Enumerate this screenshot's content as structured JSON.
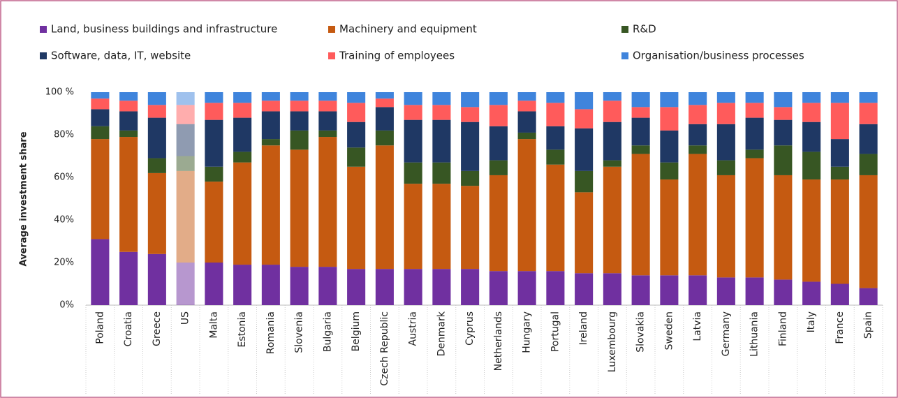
{
  "chart_data": {
    "type": "stacked_bar",
    "y_axis_label": "Average investment share",
    "categories": [
      "Poland",
      "Croatia",
      "Greece",
      "US",
      "Malta",
      "Estonia",
      "Romania",
      "Slovenia",
      "Bulgaria",
      "Belgium",
      "Czech Republic",
      "Austria",
      "Denmark",
      "Cyprus",
      "Netherlands",
      "Hungary",
      "Portugal",
      "Ireland",
      "Luxembourg",
      "Slovakia",
      "Sweden",
      "Latvia",
      "Germany",
      "Lithuania",
      "Finland",
      "Italy",
      "France",
      "Spain"
    ],
    "faded_categories": [
      "US"
    ],
    "series": [
      {
        "name": "Land, business buildings and infrastructure",
        "color": "#7030a0",
        "values": [
          31,
          25,
          24,
          20,
          20,
          19,
          19,
          18,
          18,
          17,
          17,
          17,
          17,
          17,
          16,
          16,
          16,
          15,
          15,
          14,
          14,
          14,
          13,
          13,
          12,
          11,
          10,
          8
        ]
      },
      {
        "name": "Machinery and equipment",
        "color": "#c55a11",
        "values": [
          47,
          54,
          38,
          43,
          38,
          48,
          56,
          55,
          61,
          48,
          58,
          40,
          40,
          39,
          45,
          62,
          50,
          38,
          50,
          57,
          45,
          57,
          48,
          56,
          49,
          48,
          49,
          53
        ]
      },
      {
        "name": "R&D",
        "color": "#375623",
        "values": [
          6,
          3,
          7,
          7,
          7,
          5,
          3,
          9,
          3,
          9,
          7,
          10,
          10,
          7,
          7,
          3,
          7,
          10,
          3,
          4,
          8,
          4,
          7,
          4,
          14,
          13,
          6,
          10
        ]
      },
      {
        "name": "Software, data, IT, website",
        "color": "#1f3864",
        "values": [
          8,
          9,
          19,
          15,
          22,
          16,
          13,
          9,
          9,
          12,
          11,
          20,
          20,
          23,
          16,
          10,
          11,
          20,
          18,
          13,
          15,
          10,
          17,
          15,
          12,
          14,
          13,
          14
        ]
      },
      {
        "name": "Training of employees",
        "color": "#ff5b5b",
        "values": [
          5,
          5,
          6,
          9,
          8,
          7,
          5,
          5,
          5,
          9,
          4,
          7,
          7,
          7,
          10,
          5,
          11,
          9,
          10,
          5,
          11,
          9,
          10,
          7,
          6,
          9,
          17,
          10
        ]
      },
      {
        "name": "Organisation/business processes",
        "color": "#3f84dc",
        "values": [
          3,
          4,
          6,
          6,
          5,
          5,
          4,
          4,
          4,
          5,
          3,
          6,
          6,
          7,
          6,
          4,
          5,
          8,
          4,
          7,
          7,
          6,
          5,
          5,
          7,
          5,
          5,
          5
        ]
      }
    ],
    "ylim": [
      0,
      100
    ],
    "yticks": [
      {
        "value": 0,
        "label": "0%"
      },
      {
        "value": 20,
        "label": "20%"
      },
      {
        "value": 40,
        "label": "40%"
      },
      {
        "value": 60,
        "label": "60%"
      },
      {
        "value": 80,
        "label": "80%"
      },
      {
        "value": 100,
        "label": "100 %"
      }
    ],
    "legend": "top"
  }
}
